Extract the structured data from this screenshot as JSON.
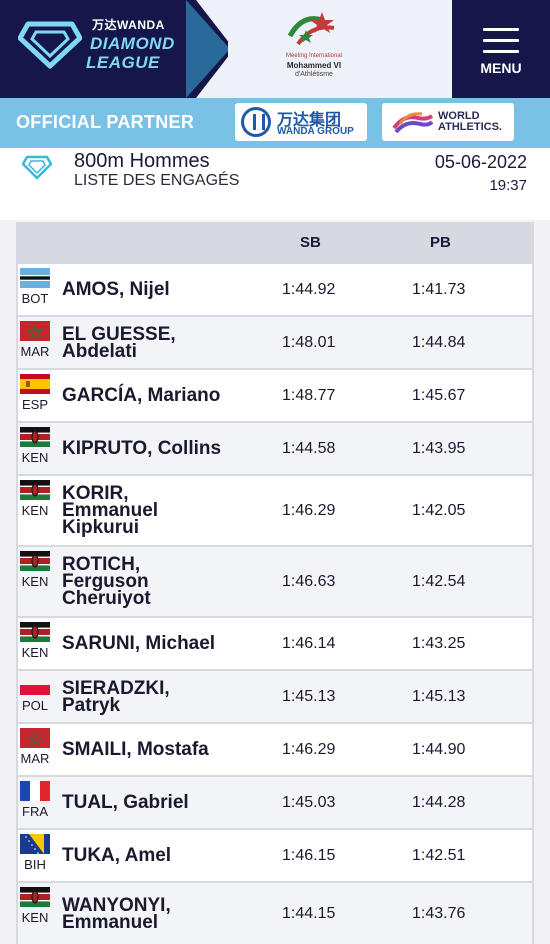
{
  "header": {
    "sponsor_small": "万达WANDA",
    "brand_line1": "DIAMOND",
    "brand_line2": "LEAGUE",
    "meeting_line1": "Meeting International",
    "meeting_line2": "Mohammed VI",
    "meeting_line3": "d'Athlétisme",
    "menu_label": "MENU"
  },
  "partner_bar": {
    "label": "OFFICIAL PARTNER",
    "wanda_cn": "万达集团",
    "wanda_en": "WANDA GROUP",
    "wa_line1": "WORLD",
    "wa_line2": "ATHLETICS."
  },
  "event": {
    "title": "800m Hommes",
    "subtitle": "LISTE DES ENGAGÉS",
    "date": "05-06-2022",
    "time": "19:37"
  },
  "table": {
    "col_sb": "SB",
    "col_pb": "PB",
    "rows": [
      {
        "name": [
          "AMOS, Nijel"
        ],
        "nat": "BOT",
        "sb": "1:44.92",
        "pb": "1:41.73"
      },
      {
        "name": [
          "EL GUESSE,",
          "Abdelati"
        ],
        "nat": "MAR",
        "sb": "1:48.01",
        "pb": "1:44.84"
      },
      {
        "name": [
          "GARCÍA, Mariano"
        ],
        "nat": "ESP",
        "sb": "1:48.77",
        "pb": "1:45.67"
      },
      {
        "name": [
          "KIPRUTO, Collins"
        ],
        "nat": "KEN",
        "sb": "1:44.58",
        "pb": "1:43.95"
      },
      {
        "name": [
          "KORIR,",
          "Emmanuel",
          "Kipkurui"
        ],
        "nat": "KEN",
        "sb": "1:46.29",
        "pb": "1:42.05"
      },
      {
        "name": [
          "ROTICH,",
          "Ferguson",
          "Cheruiyot"
        ],
        "nat": "KEN",
        "sb": "1:46.63",
        "pb": "1:42.54"
      },
      {
        "name": [
          "SARUNI, Michael"
        ],
        "nat": "KEN",
        "sb": "1:46.14",
        "pb": "1:43.25"
      },
      {
        "name": [
          "SIERADZKI,",
          "Patryk"
        ],
        "nat": "POL",
        "sb": "1:45.13",
        "pb": "1:45.13"
      },
      {
        "name": [
          "SMAILI, Mostafa"
        ],
        "nat": "MAR",
        "sb": "1:46.29",
        "pb": "1:44.90"
      },
      {
        "name": [
          "TUAL, Gabriel"
        ],
        "nat": "FRA",
        "sb": "1:45.03",
        "pb": "1:44.28"
      },
      {
        "name": [
          "TUKA, Amel"
        ],
        "nat": "BIH",
        "sb": "1:46.15",
        "pb": "1:42.51"
      },
      {
        "name": [
          "WANYONYI,",
          "Emmanuel"
        ],
        "nat": "KEN",
        "sb": "1:44.15",
        "pb": "1:43.76"
      }
    ]
  }
}
